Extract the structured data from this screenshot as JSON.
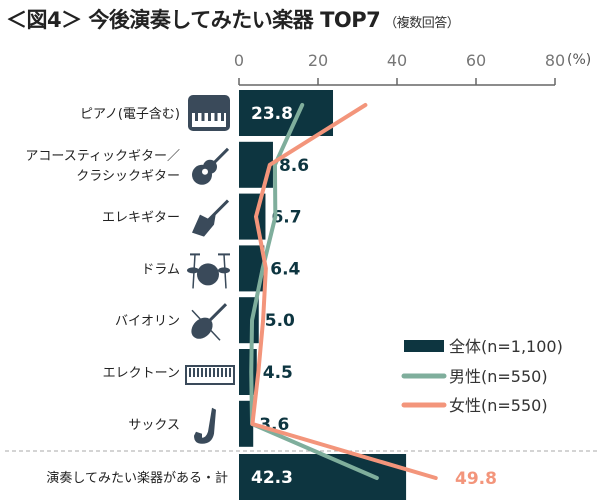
{
  "chart_data": {
    "type": "bar",
    "title": "＜図4＞ 今後演奏してみたい楽器 TOP7",
    "subtitle": "（複数回答）",
    "unit_label": "(%)",
    "xlim": [
      0,
      80
    ],
    "xticks": [
      0,
      20,
      40,
      60,
      80
    ],
    "categories": [
      {
        "label": [
          "ピアノ(電子含む)"
        ],
        "icon": "piano-icon"
      },
      {
        "label": [
          "アコースティックギター／",
          "クラシックギター"
        ],
        "icon": "acoustic-guitar-icon"
      },
      {
        "label": [
          "エレキギター"
        ],
        "icon": "electric-guitar-icon"
      },
      {
        "label": [
          "ドラム"
        ],
        "icon": "drum-icon"
      },
      {
        "label": [
          "バイオリン"
        ],
        "icon": "violin-icon"
      },
      {
        "label": [
          "エレクトーン"
        ],
        "icon": "keyboard-icon"
      },
      {
        "label": [
          "サックス"
        ],
        "icon": "saxophone-icon"
      },
      {
        "label": [
          "演奏してみたい楽器がある・計"
        ],
        "icon": ""
      }
    ],
    "series": [
      {
        "name": "全体(n=1,100)",
        "kind": "bar",
        "color": "#0d3540",
        "values": [
          23.8,
          8.6,
          6.7,
          6.4,
          5.0,
          4.5,
          3.6,
          42.3
        ]
      },
      {
        "name": "男性(n=550)",
        "kind": "line",
        "color": "#7fae9c",
        "values": [
          16,
          9.1,
          9.2,
          6.0,
          3.3,
          3.1,
          3.3,
          34.9
        ]
      },
      {
        "name": "女性(n=550)",
        "kind": "line",
        "color": "#f3957b",
        "values": [
          32,
          7.8,
          4.3,
          6.8,
          6.1,
          4.9,
          3.4,
          49.8
        ]
      }
    ],
    "value_labels": [
      "23.8",
      "8.6",
      "6.7",
      "6.4",
      "5.0",
      "4.5",
      "3.6",
      "42.3"
    ],
    "female_total_label": "49.8",
    "legend": "right"
  }
}
